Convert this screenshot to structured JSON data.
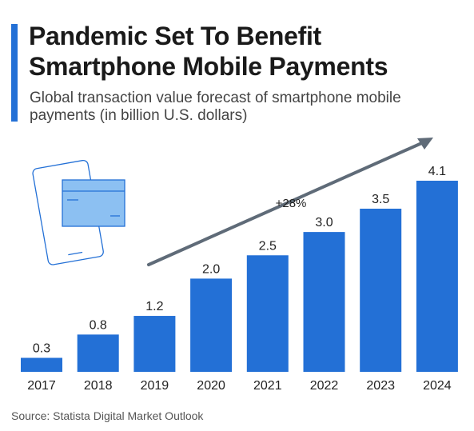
{
  "header": {
    "title": "Pandemic Set To Benefit Smartphone Mobile Payments",
    "subtitle": "Global transaction value forecast of smartphone mobile payments (in billion U.S. dollars)"
  },
  "source": "Source: Statista Digital Market Outlook",
  "colors": {
    "bar": "#2370d6",
    "accent": "#2370d6",
    "arrow": "#5f6b78",
    "illustration": "#2370d6"
  },
  "chart_data": {
    "type": "bar",
    "categories": [
      "2017",
      "2018",
      "2019",
      "2020",
      "2021",
      "2022",
      "2023",
      "2024"
    ],
    "values": [
      0.3,
      0.8,
      1.2,
      2.0,
      2.5,
      3.0,
      3.5,
      4.1
    ],
    "value_labels": [
      "0.3",
      "0.8",
      "1.2",
      "2.0",
      "2.5",
      "3.0",
      "3.5",
      "4.1"
    ],
    "annotation": "+28%",
    "ylim": [
      0,
      4.1
    ],
    "grid": false,
    "legend": "none"
  }
}
